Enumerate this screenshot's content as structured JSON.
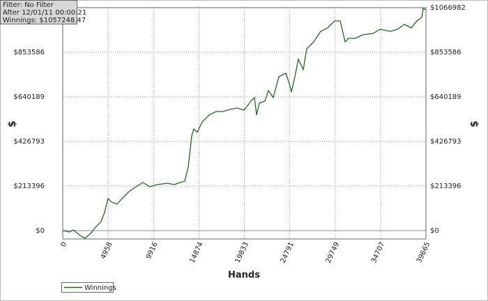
{
  "chart_data": {
    "type": "line",
    "info": [
      "Filter: No Filter",
      "After 12/01/11 00:00:21",
      "Winnings: $1057248.47"
    ],
    "x_label": "Hands",
    "y_label": "$",
    "grid": true,
    "xlim": [
      0,
      39665
    ],
    "ylim": [
      -40000,
      1066982
    ],
    "xticks": [
      0,
      4958,
      9916,
      14874,
      19833,
      24791,
      29749,
      34707,
      39665
    ],
    "yticks": [
      {
        "value": 0,
        "label": "$0"
      },
      {
        "value": 213396,
        "label": "$213396"
      },
      {
        "value": 426793,
        "label": "$426793"
      },
      {
        "value": 640189,
        "label": "$640189"
      },
      {
        "value": 853586,
        "label": "$853586"
      },
      {
        "value": 1066982,
        "label": "$1066982"
      }
    ],
    "series": [
      {
        "name": "Winnings",
        "color": "#1e6b1e",
        "x": [
          0,
          761,
          1142,
          1903,
          2436,
          3045,
          3654,
          4187,
          4568,
          4948,
          5329,
          5938,
          6471,
          7232,
          7994,
          8755,
          9516,
          10278,
          11420,
          12181,
          12790,
          13323,
          13703,
          14084,
          14312,
          14693,
          15226,
          15987,
          16749,
          17510,
          18271,
          19033,
          19794,
          20175,
          20555,
          20936,
          21164,
          21469,
          22078,
          22459,
          22992,
          23601,
          24362,
          24743,
          24971,
          25352,
          25733,
          26266,
          26646,
          27407,
          28169,
          28930,
          29691,
          30300,
          30833,
          31214,
          31975,
          32736,
          33878,
          34640,
          35781,
          36543,
          37304,
          38065,
          38674,
          39207,
          39360,
          39665
        ],
        "values": [
          0,
          -6668,
          3334,
          -23338,
          -36674,
          -13336,
          20004,
          43342,
          86684,
          153364,
          136694,
          126692,
          153364,
          186704,
          210042,
          230046,
          210042,
          220044,
          226712,
          220044,
          230046,
          236714,
          303394,
          453424,
          486764,
          470094,
          520104,
          553444,
          570114,
          570114,
          580116,
          586784,
          576782,
          596786,
          620124,
          636794,
          553444,
          610122,
          620124,
          670134,
          636794,
          736814,
          753484,
          703474,
          663466,
          736814,
          820164,
          770154,
          870174,
          903514,
          953524,
          970194,
          1003534,
          1003534,
          903514,
          920184,
          920184,
          936854,
          943522,
          963526,
          953524,
          963526,
          986864,
          970194,
          1003534,
          1020204,
          1063546,
          1057248.47
        ]
      }
    ]
  }
}
